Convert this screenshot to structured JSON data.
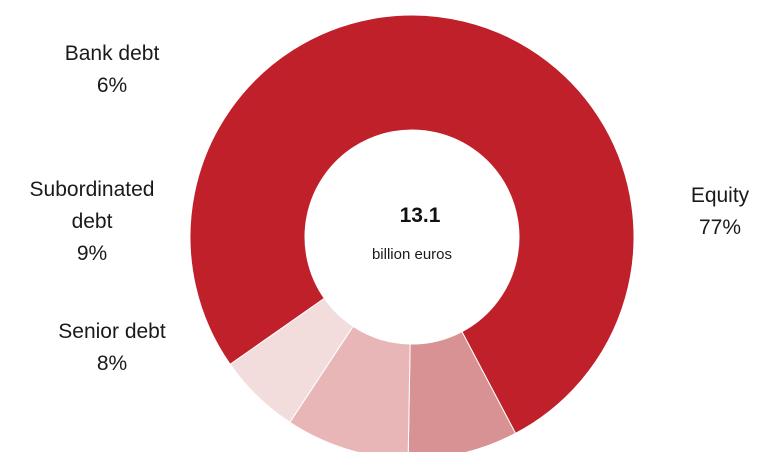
{
  "chart_data": {
    "type": "pie",
    "donut": true,
    "center": {
      "value": "13.1",
      "unit": "billion euros"
    },
    "slices": [
      {
        "name": "Equity",
        "value": 77,
        "label_lines": [
          "Equity",
          "77%"
        ],
        "color": "#C0202A"
      },
      {
        "name": "Senior debt",
        "value": 8,
        "label_lines": [
          "Senior debt",
          "8%"
        ],
        "color": "#D99294"
      },
      {
        "name": "Subordinated debt",
        "value": 9,
        "label_lines": [
          "Subordinated",
          "debt",
          "9%"
        ],
        "color": "#E8B6B7"
      },
      {
        "name": "Bank debt",
        "value": 6,
        "label_lines": [
          "Bank debt",
          "6%"
        ],
        "color": "#F3DCDC"
      }
    ]
  }
}
